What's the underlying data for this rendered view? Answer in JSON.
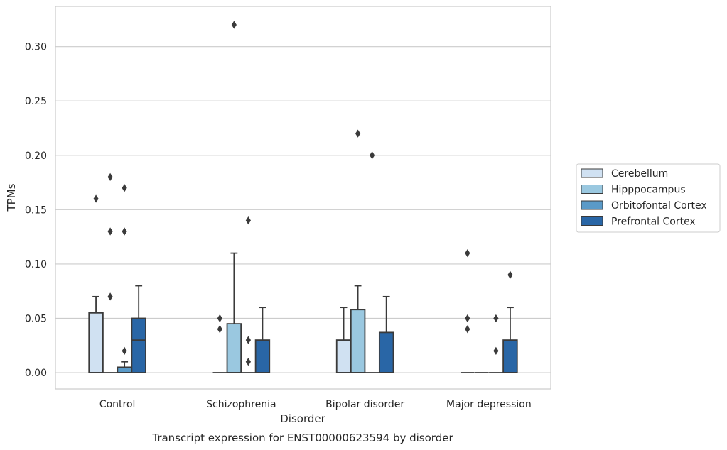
{
  "chart_data": {
    "type": "box",
    "title": "",
    "caption": "Transcript expression for ENST00000623594 by disorder",
    "xlabel": "Disorder",
    "ylabel": "TPMs",
    "ylim": [
      -0.015,
      0.337
    ],
    "yticks": [
      0.0,
      0.05,
      0.1,
      0.15,
      0.2,
      0.25,
      0.3
    ],
    "ytick_labels": [
      "0.00",
      "0.05",
      "0.10",
      "0.15",
      "0.20",
      "0.25",
      "0.30"
    ],
    "grid": true,
    "legend_placement": "right",
    "categories": [
      "Control",
      "Schizophrenia",
      "Bipolar disorder",
      "Major depression"
    ],
    "series": [
      {
        "name": "Cerebellum",
        "color": "#d0e1f2",
        "boxes": [
          {
            "q1": 0,
            "median": 0,
            "q3": 0.055,
            "whisker_low": 0,
            "whisker_high": 0.07,
            "outliers": [
              0.16
            ]
          },
          {
            "q1": 0,
            "median": 0,
            "q3": 0,
            "whisker_low": 0,
            "whisker_high": 0,
            "outliers": [
              0.04,
              0.05
            ]
          },
          {
            "q1": 0,
            "median": 0,
            "q3": 0.03,
            "whisker_low": 0,
            "whisker_high": 0.06,
            "outliers": []
          },
          {
            "q1": 0,
            "median": 0,
            "q3": 0,
            "whisker_low": 0,
            "whisker_high": 0,
            "outliers": [
              0.04,
              0.05,
              0.11
            ]
          }
        ]
      },
      {
        "name": "Hipppocampus",
        "color": "#9ac8e0",
        "boxes": [
          {
            "q1": 0,
            "median": 0,
            "q3": 0,
            "whisker_low": 0,
            "whisker_high": 0,
            "outliers": [
              0.07,
              0.13,
              0.18
            ]
          },
          {
            "q1": 0,
            "median": 0,
            "q3": 0.045,
            "whisker_low": 0,
            "whisker_high": 0.11,
            "outliers": [
              0.32
            ]
          },
          {
            "q1": 0,
            "median": 0,
            "q3": 0.058,
            "whisker_low": 0,
            "whisker_high": 0.08,
            "outliers": [
              0.22
            ]
          },
          {
            "q1": 0,
            "median": 0,
            "q3": 0,
            "whisker_low": 0,
            "whisker_high": 0,
            "outliers": []
          }
        ]
      },
      {
        "name": "Orbitofontal Cortex",
        "color": "#5a9ac8",
        "boxes": [
          {
            "q1": 0,
            "median": 0,
            "q3": 0.005,
            "whisker_low": 0,
            "whisker_high": 0.01,
            "outliers": [
              0.02,
              0.13,
              0.17
            ]
          },
          {
            "q1": 0,
            "median": 0,
            "q3": 0,
            "whisker_low": 0,
            "whisker_high": 0,
            "outliers": [
              0.01,
              0.03,
              0.14
            ]
          },
          {
            "q1": 0,
            "median": 0,
            "q3": 0,
            "whisker_low": 0,
            "whisker_high": 0,
            "outliers": [
              0.2
            ]
          },
          {
            "q1": 0,
            "median": 0,
            "q3": 0,
            "whisker_low": 0,
            "whisker_high": 0,
            "outliers": [
              0.02,
              0.05
            ]
          }
        ]
      },
      {
        "name": "Prefrontal Cortex",
        "color": "#2966a6",
        "boxes": [
          {
            "q1": 0,
            "median": 0.03,
            "q3": 0.05,
            "whisker_low": 0,
            "whisker_high": 0.08,
            "outliers": []
          },
          {
            "q1": 0,
            "median": 0,
            "q3": 0.03,
            "whisker_low": 0,
            "whisker_high": 0.06,
            "outliers": []
          },
          {
            "q1": 0,
            "median": 0,
            "q3": 0.037,
            "whisker_low": 0,
            "whisker_high": 0.07,
            "outliers": []
          },
          {
            "q1": 0,
            "median": 0,
            "q3": 0.03,
            "whisker_low": 0,
            "whisker_high": 0.06,
            "outliers": [
              0.09
            ]
          }
        ]
      }
    ]
  }
}
